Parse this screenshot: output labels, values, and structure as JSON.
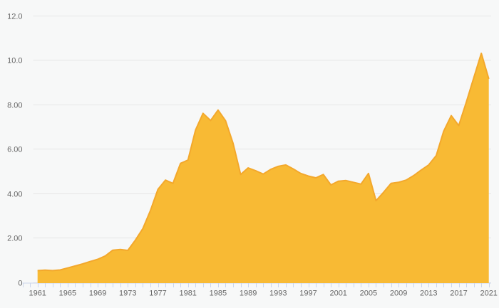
{
  "chart_data": {
    "type": "area",
    "title": "",
    "xlabel": "",
    "ylabel": "",
    "legend": "none",
    "grid": "horizontal",
    "x_start": 1961,
    "x_step": 1,
    "x_end": 2021,
    "ylim": [
      0,
      12
    ],
    "values": [
      0.53,
      0.55,
      0.53,
      0.56,
      0.65,
      0.74,
      0.83,
      0.94,
      1.04,
      1.19,
      1.45,
      1.48,
      1.44,
      1.9,
      2.42,
      3.22,
      4.18,
      4.6,
      4.45,
      5.35,
      5.5,
      6.85,
      7.6,
      7.28,
      7.75,
      7.27,
      6.25,
      4.85,
      5.15,
      5.02,
      4.87,
      5.08,
      5.22,
      5.28,
      5.1,
      4.9,
      4.78,
      4.7,
      4.85,
      4.38,
      4.55,
      4.58,
      4.5,
      4.42,
      4.9,
      3.67,
      4.05,
      4.45,
      4.5,
      4.6,
      4.8,
      5.05,
      5.28,
      5.7,
      6.8,
      7.5,
      7.05,
      8.1,
      9.2,
      10.3,
      9.15
    ],
    "x_tick_labels": [
      "1961",
      "1965",
      "1969",
      "1973",
      "1977",
      "1981",
      "1985",
      "1989",
      "1993",
      "1997",
      "2001",
      "2005",
      "2009",
      "2013",
      "2017",
      "2021"
    ],
    "y_ticks": [
      {
        "value": 0,
        "label": "0"
      },
      {
        "value": 2,
        "label": "2.00"
      },
      {
        "value": 4,
        "label": "4.00"
      },
      {
        "value": 6,
        "label": "6.00"
      },
      {
        "value": 8,
        "label": "8.00"
      },
      {
        "value": 10,
        "label": "10.0"
      },
      {
        "value": 12,
        "label": "12.0"
      }
    ],
    "colors": {
      "area_fill": "#F8BA34",
      "area_line": "#F3A82C",
      "gridline": "#E6E6E6",
      "axis_line": "#CCD6EB",
      "tick": "#CCD6EB",
      "label_text": "#666666",
      "background": "#F7F8F8"
    }
  }
}
